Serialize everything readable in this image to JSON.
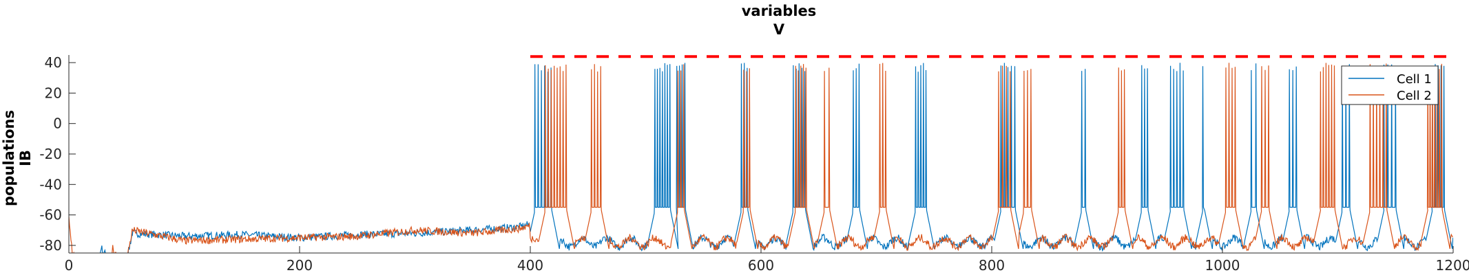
{
  "chart_data": {
    "type": "line",
    "title": [
      "variables",
      "V"
    ],
    "ylabel": [
      "populations",
      "IB"
    ],
    "xlim": [
      0,
      1200
    ],
    "ylim": [
      -85,
      45
    ],
    "xticks": [
      0,
      200,
      400,
      600,
      800,
      1000,
      1200
    ],
    "yticks": [
      40,
      20,
      0,
      -20,
      -40,
      -60,
      -80
    ],
    "legend": {
      "position": "top-right",
      "entries": [
        "Cell 1",
        "Cell 2"
      ]
    },
    "threshold": {
      "y": 44,
      "x": [
        400,
        1200
      ],
      "style": "dashed",
      "color": "#ff0000"
    },
    "series": [
      {
        "name": "Cell 1",
        "color": "#0072bd",
        "rest_points": [
          [
            0,
            -95
          ],
          [
            25,
            -95
          ],
          [
            28,
            -81
          ],
          [
            30,
            -85
          ],
          [
            50,
            -90
          ],
          [
            55,
            -72
          ],
          [
            100,
            -74
          ],
          [
            150,
            -73
          ],
          [
            200,
            -75
          ],
          [
            250,
            -73
          ],
          [
            300,
            -72
          ],
          [
            350,
            -70
          ],
          [
            390,
            -68
          ],
          [
            400,
            -66
          ]
        ],
        "bursts": [
          {
            "start": 404,
            "spikes": 6,
            "dur": 14
          },
          {
            "start": 508,
            "spikes": 7,
            "dur": 13
          },
          {
            "start": 527,
            "spikes": 4,
            "dur": 7
          },
          {
            "start": 583,
            "spikes": 3,
            "dur": 5
          },
          {
            "start": 628,
            "spikes": 5,
            "dur": 10
          },
          {
            "start": 680,
            "spikes": 3,
            "dur": 5
          },
          {
            "start": 734,
            "spikes": 5,
            "dur": 9
          },
          {
            "start": 808,
            "spikes": 5,
            "dur": 12
          },
          {
            "start": 878,
            "spikes": 2,
            "dur": 3
          },
          {
            "start": 930,
            "spikes": 3,
            "dur": 5
          },
          {
            "start": 955,
            "spikes": 5,
            "dur": 11
          },
          {
            "start": 983,
            "spikes": 1,
            "dur": 1
          },
          {
            "start": 1025,
            "spikes": 2,
            "dur": 4
          },
          {
            "start": 1058,
            "spikes": 3,
            "dur": 6
          },
          {
            "start": 1104,
            "spikes": 3,
            "dur": 6
          },
          {
            "start": 1140,
            "spikes": 4,
            "dur": 10
          },
          {
            "start": 1182,
            "spikes": 5,
            "dur": 10
          }
        ]
      },
      {
        "name": "Cell 2",
        "color": "#d95319",
        "rest_points": [
          [
            0,
            -60
          ],
          [
            3,
            -85
          ],
          [
            10,
            -95
          ],
          [
            35,
            -95
          ],
          [
            38,
            -82
          ],
          [
            40,
            -85
          ],
          [
            50,
            -90
          ],
          [
            55,
            -70
          ],
          [
            100,
            -77
          ],
          [
            150,
            -76
          ],
          [
            200,
            -75
          ],
          [
            250,
            -74
          ],
          [
            300,
            -70
          ],
          [
            350,
            -72
          ],
          [
            390,
            -69
          ],
          [
            400,
            -67
          ]
        ],
        "bursts": [
          {
            "start": 413,
            "spikes": 8,
            "dur": 18
          },
          {
            "start": 453,
            "spikes": 4,
            "dur": 8
          },
          {
            "start": 528,
            "spikes": 3,
            "dur": 5
          },
          {
            "start": 585,
            "spikes": 3,
            "dur": 5
          },
          {
            "start": 630,
            "spikes": 5,
            "dur": 9
          },
          {
            "start": 655,
            "spikes": 2,
            "dur": 4
          },
          {
            "start": 703,
            "spikes": 3,
            "dur": 5
          },
          {
            "start": 806,
            "spikes": 4,
            "dur": 10
          },
          {
            "start": 828,
            "spikes": 3,
            "dur": 6
          },
          {
            "start": 910,
            "spikes": 3,
            "dur": 5
          },
          {
            "start": 1003,
            "spikes": 4,
            "dur": 8
          },
          {
            "start": 1034,
            "spikes": 3,
            "dur": 6
          },
          {
            "start": 1085,
            "spikes": 6,
            "dur": 12
          },
          {
            "start": 1128,
            "spikes": 6,
            "dur": 14
          },
          {
            "start": 1178,
            "spikes": 7,
            "dur": 12
          }
        ]
      }
    ]
  }
}
